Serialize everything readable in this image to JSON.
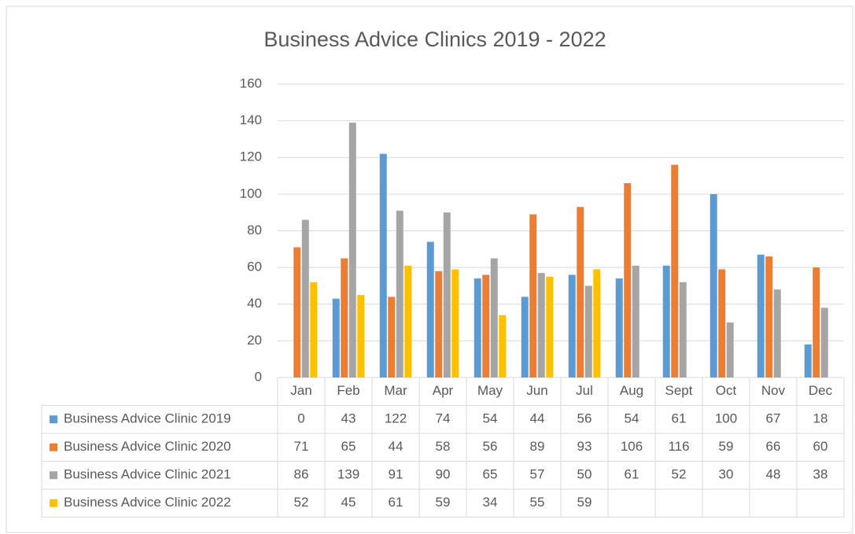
{
  "chart_data": {
    "type": "bar",
    "title": "Business Advice Clinics 2019 - 2022",
    "categories": [
      "Jan",
      "Feb",
      "Mar",
      "Apr",
      "May",
      "Jun",
      "Jul",
      "Aug",
      "Sept",
      "Oct",
      "Nov",
      "Dec"
    ],
    "series": [
      {
        "name": "Business Advice Clinic 2019",
        "color": "#5b9bd5",
        "values": [
          0,
          43,
          122,
          74,
          54,
          44,
          56,
          54,
          61,
          100,
          67,
          18
        ]
      },
      {
        "name": "Business Advice Clinic 2020",
        "color": "#ed7d31",
        "values": [
          71,
          65,
          44,
          58,
          56,
          89,
          93,
          106,
          116,
          59,
          66,
          60
        ]
      },
      {
        "name": "Business Advice Clinic 2021",
        "color": "#a5a5a5",
        "values": [
          86,
          139,
          91,
          90,
          65,
          57,
          50,
          61,
          52,
          30,
          48,
          38
        ]
      },
      {
        "name": "Business Advice Clinic 2022",
        "color": "#ffc000",
        "values": [
          52,
          45,
          61,
          59,
          34,
          55,
          59,
          null,
          null,
          null,
          null,
          null
        ]
      }
    ],
    "ylim": [
      0,
      160
    ],
    "yticks": [
      0,
      20,
      40,
      60,
      80,
      100,
      120,
      140,
      160
    ],
    "grid": true
  }
}
